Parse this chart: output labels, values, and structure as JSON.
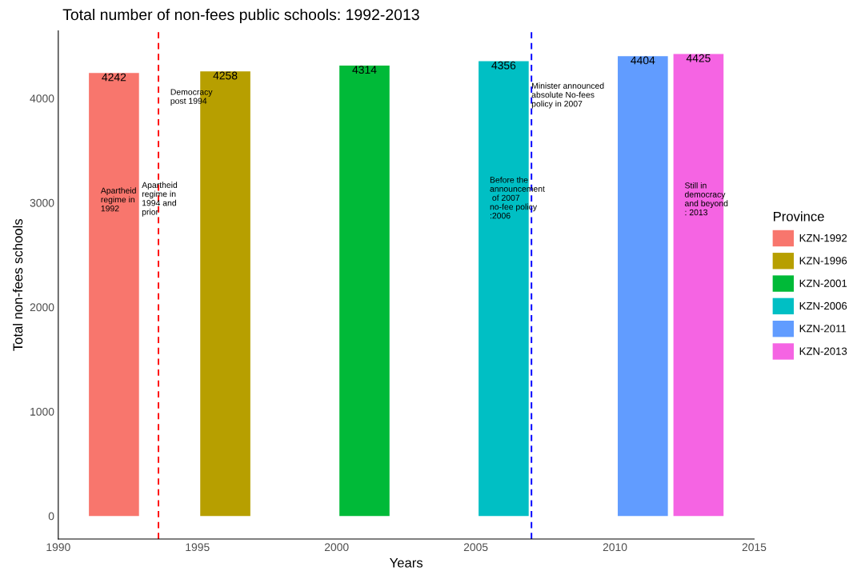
{
  "chart_data": {
    "type": "bar",
    "title": "Total number of non-fees public schools: 1992-2013",
    "xlabel": "Years",
    "ylabel": "Total non-fees schools",
    "legend_title": "Province",
    "series": [
      {
        "name": "KZN-1992",
        "color": "#f8766d",
        "x": [
          1992
        ],
        "values": [
          4242
        ]
      },
      {
        "name": "KZN-1996",
        "color": "#b79f00",
        "x": [
          1996
        ],
        "values": [
          4258
        ]
      },
      {
        "name": "KZN-2001",
        "color": "#00ba38",
        "x": [
          2001
        ],
        "values": [
          4314
        ]
      },
      {
        "name": "KZN-2006",
        "color": "#00bfc4",
        "x": [
          2006
        ],
        "values": [
          4356
        ]
      },
      {
        "name": "KZN-2011",
        "color": "#619cff",
        "x": [
          2011
        ],
        "values": [
          4404
        ]
      },
      {
        "name": "KZN-2013",
        "color": "#f564e3",
        "x": [
          2013
        ],
        "values": [
          4425
        ]
      }
    ],
    "data_labels": true,
    "xlim": [
      1990,
      2015
    ],
    "xticks": [
      1990,
      1995,
      2000,
      2005,
      2010,
      2015
    ],
    "ylim": [
      -221,
      4646
    ],
    "yticks": [
      0,
      1000,
      2000,
      3000,
      4000
    ],
    "grid": false,
    "legend": "right",
    "ref_lines": [
      {
        "axis": "x",
        "value": 1993.6,
        "color": "#ff0000",
        "line_style": "dashed"
      },
      {
        "axis": "x",
        "value": 2007,
        "color": "#0000ff",
        "line_style": "dashed"
      }
    ],
    "annotations": [
      "Apartheid\nregime in\n1992",
      {
        "text": "Apartheid\nregime in\n1994 and\nprior",
        "x": 1993.0,
        "y": 3200
      },
      "Democracy\npost 1994",
      "Before the\nannouncement\n of 2007\nno-fee policy\n:2006",
      {
        "text": "Minister announced\nabsolute No-fees\npolicy in 2007",
        "x": 2007.0,
        "y": 4150
      },
      "Still in\ndemocracy\nand beyond\n: 2013"
    ]
  }
}
